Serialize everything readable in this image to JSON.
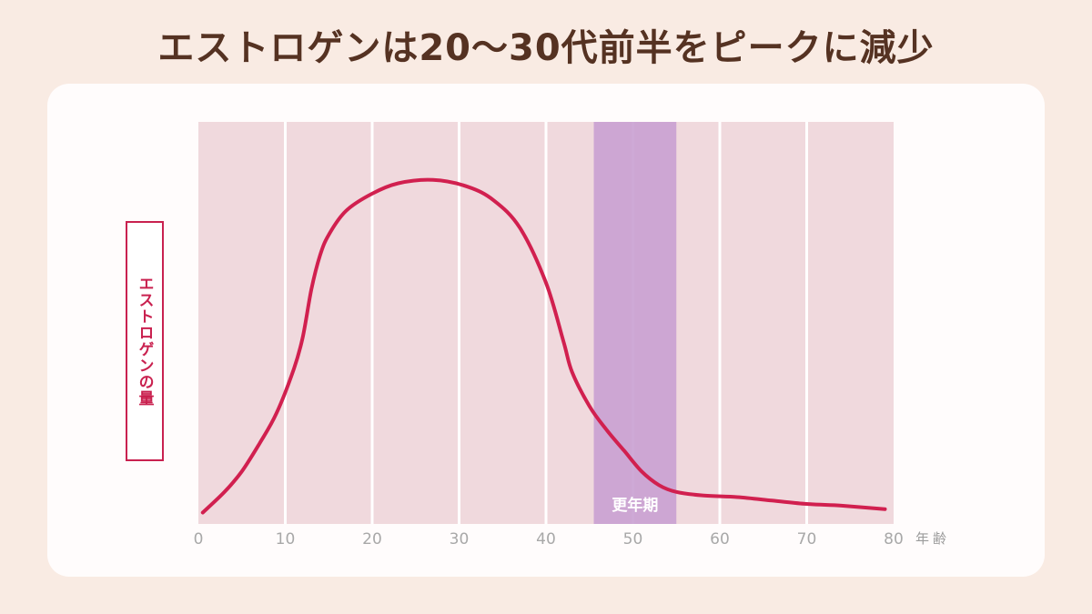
{
  "title": "エストロゲンは20〜30代前半をピークに減少",
  "chart_data": {
    "type": "line",
    "title": "エストロゲンは20〜30代前半をピークに減少",
    "xlabel": "年齢",
    "ylabel": "エストロゲンの量",
    "xlim": [
      0,
      80
    ],
    "xticks": [
      0,
      10,
      20,
      30,
      40,
      50,
      60,
      70,
      80
    ],
    "ylim": [
      0,
      100
    ],
    "grid": true,
    "y_values_relative": true,
    "series": [
      {
        "color": "#d1204f",
        "x": [
          0.5,
          3,
          5,
          7,
          9,
          11,
          12,
          13,
          14,
          15,
          17,
          20,
          23,
          27,
          31,
          34,
          37,
          40,
          42,
          43,
          45,
          47,
          49,
          51,
          53,
          55,
          58,
          62,
          66,
          70,
          74,
          79
        ],
        "y": [
          2,
          8,
          14,
          22,
          31,
          44,
          53,
          67,
          77,
          83,
          90,
          95,
          98,
          99,
          97,
          93,
          85,
          69,
          52,
          43,
          33,
          26,
          20,
          14,
          10,
          8,
          7,
          6.5,
          5.5,
          4.5,
          4,
          3
        ]
      }
    ],
    "highlight": {
      "label": "更年期",
      "x_start": 45.5,
      "x_end": 55,
      "color": "#c9a0d1"
    },
    "background_color": "#f0d9dd",
    "gridline_color": "#ffffff"
  }
}
